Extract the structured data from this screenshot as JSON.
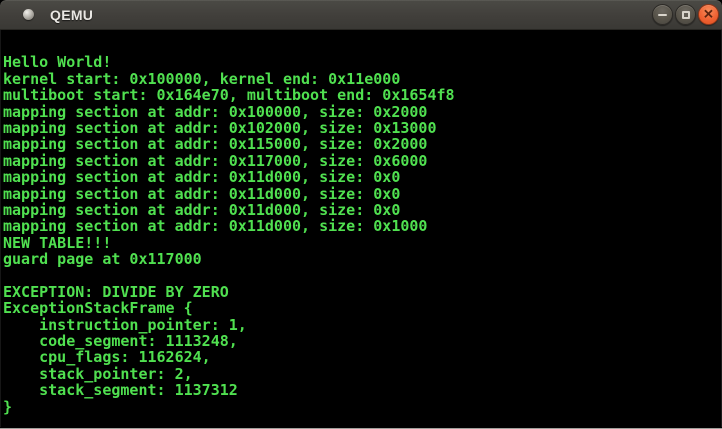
{
  "window": {
    "title": "QEMU",
    "controls": {
      "minimize_icon": "minus-bar",
      "maximize_icon": "square-outline",
      "close_glyph": "✕"
    }
  },
  "colors": {
    "console_fg": "#50e050",
    "console_bg": "#000000",
    "titlebar_bg": "#413f3b",
    "close_button": "#ef6233"
  },
  "console": {
    "lines": [
      "",
      "Hello World!",
      "kernel start: 0x100000, kernel end: 0x11e000",
      "multiboot start: 0x164e70, multiboot end: 0x1654f8",
      "mapping section at addr: 0x100000, size: 0x2000",
      "mapping section at addr: 0x102000, size: 0x13000",
      "mapping section at addr: 0x115000, size: 0x2000",
      "mapping section at addr: 0x117000, size: 0x6000",
      "mapping section at addr: 0x11d000, size: 0x0",
      "mapping section at addr: 0x11d000, size: 0x0",
      "mapping section at addr: 0x11d000, size: 0x0",
      "mapping section at addr: 0x11d000, size: 0x1000",
      "NEW TABLE!!!",
      "guard page at 0x117000",
      "",
      "EXCEPTION: DIVIDE BY ZERO",
      "ExceptionStackFrame {",
      "    instruction_pointer: 1,",
      "    code_segment: 1113248,",
      "    cpu_flags: 1162624,",
      "    stack_pointer: 2,",
      "    stack_segment: 1137312",
      "}"
    ]
  }
}
